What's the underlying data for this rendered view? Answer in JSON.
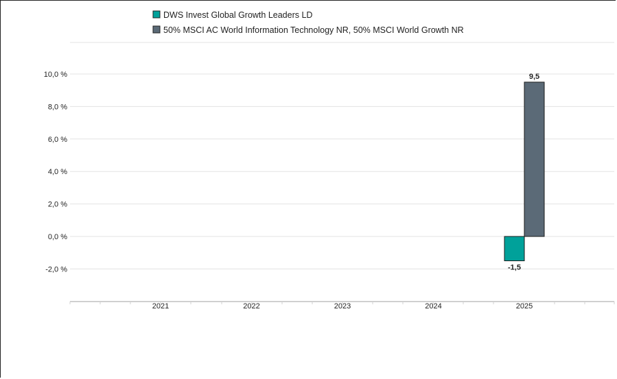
{
  "chart_data": {
    "type": "bar",
    "categories": [
      "2021",
      "2022",
      "2023",
      "2024",
      "2025"
    ],
    "series": [
      {
        "name": "DWS Invest Global Growth Leaders LD",
        "color": "#00a19a",
        "values": [
          null,
          null,
          null,
          null,
          -1.5
        ]
      },
      {
        "name": "50% MSCI AC World Information Technology NR, 50% MSCI World Growth NR",
        "color": "#5b6a77",
        "values": [
          null,
          null,
          null,
          null,
          9.5
        ]
      }
    ],
    "data_labels": [
      {
        "series": 0,
        "category": "2025",
        "text": "-1,5"
      },
      {
        "series": 1,
        "category": "2025",
        "text": "9,5"
      }
    ],
    "y_ticks": [
      {
        "value": 10,
        "label": "10,0 %"
      },
      {
        "value": 8,
        "label": "8,0 %"
      },
      {
        "value": 6,
        "label": "6,0 %"
      },
      {
        "value": 4,
        "label": "4,0 %"
      },
      {
        "value": 2,
        "label": "2,0 %"
      },
      {
        "value": 0,
        "label": "0,0 %"
      },
      {
        "value": -2,
        "label": "-2,0 %"
      }
    ],
    "ylim": [
      -4,
      12
    ],
    "grid": true,
    "legend_position": "top-left"
  }
}
